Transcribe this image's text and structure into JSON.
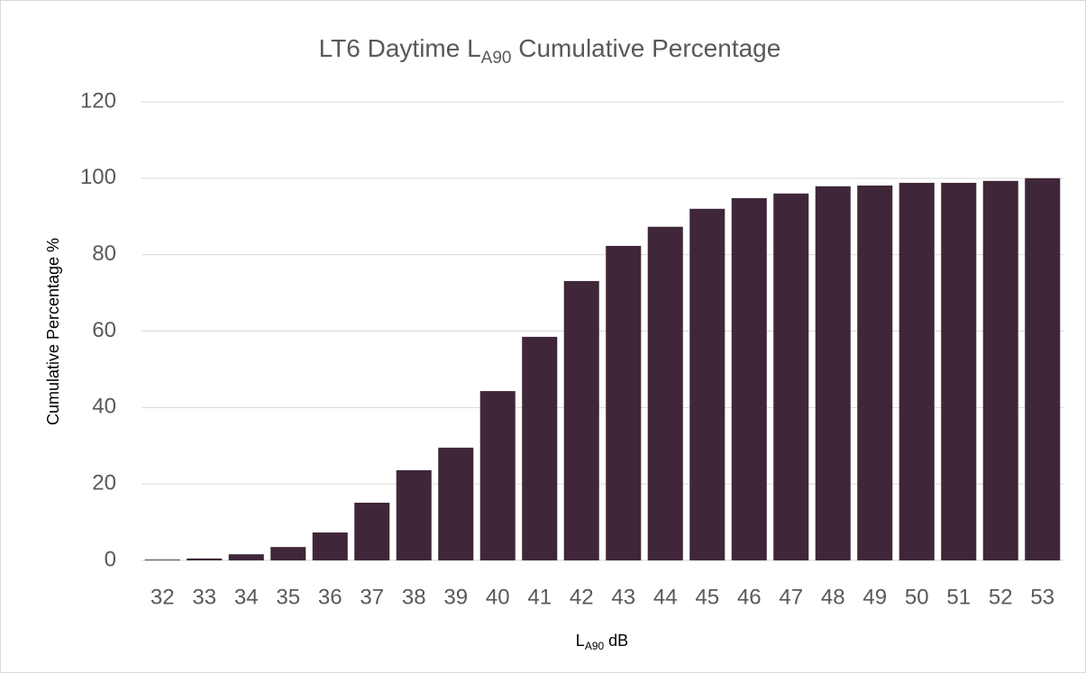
{
  "chart_data": {
    "type": "bar",
    "title": [
      "LT6 Daytime L",
      "A90",
      " Cumulative Percentage"
    ],
    "x_label": [
      "L",
      "A90",
      " dB"
    ],
    "y_label": "Cumulative Percentage %",
    "categories": [
      "32",
      "33",
      "34",
      "35",
      "36",
      "37",
      "38",
      "39",
      "40",
      "41",
      "42",
      "43",
      "44",
      "45",
      "46",
      "47",
      "48",
      "49",
      "50",
      "51",
      "52",
      "53"
    ],
    "values": [
      0.2,
      0.5,
      1.6,
      3.5,
      7.3,
      15.1,
      23.6,
      29.5,
      44.3,
      58.5,
      73.1,
      82.3,
      87.3,
      92.0,
      94.8,
      96.0,
      97.9,
      98.1,
      98.8,
      98.8,
      99.3,
      100
    ],
    "color": "#3f2739",
    "ylim": [
      0,
      120
    ],
    "yticks": [
      0,
      20,
      40,
      60,
      80,
      100,
      120
    ],
    "grid": true
  }
}
